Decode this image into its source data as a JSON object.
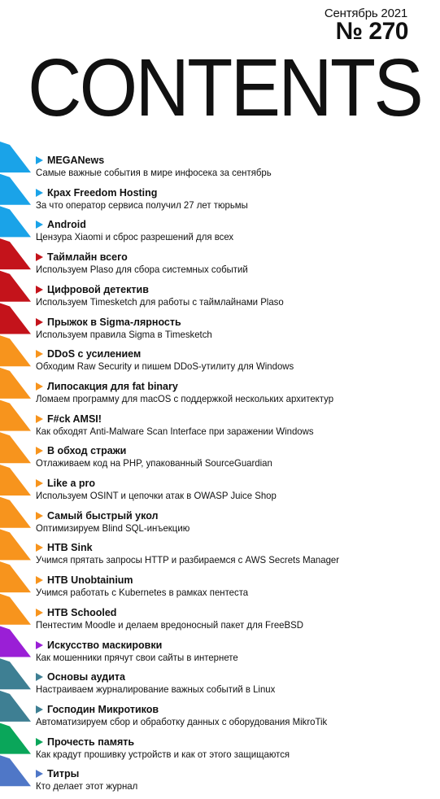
{
  "header": {
    "issue_date": "Сентябрь 2021",
    "issue_number": "№ 270",
    "title": "CONTENTS"
  },
  "colors": {
    "blue": "#1aa3e8",
    "red": "#c4131b",
    "orange": "#f7941d",
    "purple": "#9a1fd6",
    "teal": "#3e7f93",
    "green": "#0aa65a",
    "steel": "#4f77c7"
  },
  "entries": [
    {
      "title": "MEGANews",
      "subtitle": "Самые важные события в мире инфосека за сентябрь",
      "color": "blue"
    },
    {
      "title": "Крах Freedom Hosting",
      "subtitle": "За что оператор сервиса получил 27 лет тюрьмы",
      "color": "blue"
    },
    {
      "title": "Android",
      "subtitle": "Цензура Xiaomi и сброс разрешений для всех",
      "color": "blue"
    },
    {
      "title": "Таймлайн всего",
      "subtitle": "Используем Plaso для сбора системных событий",
      "color": "red"
    },
    {
      "title": "Цифровой детектив",
      "subtitle": "Используем Timesketch для работы с таймлайнами Plaso",
      "color": "red"
    },
    {
      "title": "Прыжок в Sigma-лярность",
      "subtitle": "Используем правила Sigma в Timesketch",
      "color": "red"
    },
    {
      "title": "DDoS с усилением",
      "subtitle": "Обходим Raw Security и пишем DDoS-утилиту для Windows",
      "color": "orange"
    },
    {
      "title": "Липосакция для fat binary",
      "subtitle": "Ломаем программу для macOS с поддержкой нескольких архитектур",
      "color": "orange"
    },
    {
      "title": "F#ck AMSI!",
      "subtitle": "Как обходят Anti-Malware Scan Interface при заражении Windows",
      "color": "orange"
    },
    {
      "title": "В обход стражи",
      "subtitle": "Отлаживаем код на PHP, упакованный SourceGuardian",
      "color": "orange"
    },
    {
      "title": "Like a pro",
      "subtitle": "Используем OSINT и цепочки атак в OWASP Juice Shop",
      "color": "orange"
    },
    {
      "title": "Самый быстрый укол",
      "subtitle": "Оптимизируем Blind SQL-инъекцию",
      "color": "orange"
    },
    {
      "title": "HTB Sink",
      "subtitle": "Учимся прятать запросы HTTP и разбираемся с AWS Secrets Manager",
      "color": "orange"
    },
    {
      "title": "HTB Unobtainium",
      "subtitle": "Учимся работать с Kubernetes в рамках пентеста",
      "color": "orange"
    },
    {
      "title": "HTB Schooled",
      "subtitle": "Пентестим Moodle и делаем вредоносный пакет для FreeBSD",
      "color": "orange"
    },
    {
      "title": "Искусство маскировки",
      "subtitle": "Как мошенники прячут свои сайты в интернете",
      "color": "purple"
    },
    {
      "title": "Основы аудита",
      "subtitle": "Настраиваем журналирование важных событий в Linux",
      "color": "teal"
    },
    {
      "title": "Господин Микротиков",
      "subtitle": "Автоматизируем сбор и обработку данных с оборудования MikroTik",
      "color": "teal"
    },
    {
      "title": "Прочесть память",
      "subtitle": "Как крадут прошивку устройств и как от этого защищаются",
      "color": "green"
    },
    {
      "title": "Титры",
      "subtitle": "Кто делает этот журнал",
      "color": "steel"
    }
  ]
}
